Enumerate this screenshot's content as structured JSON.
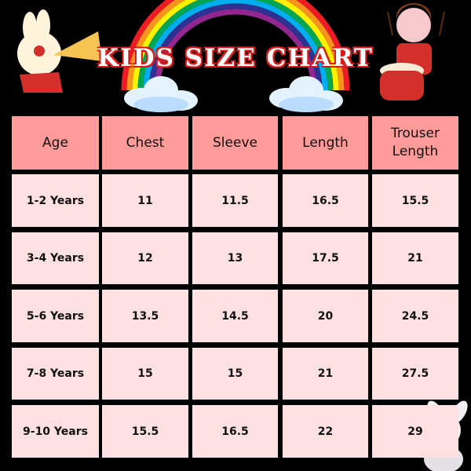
{
  "title": "KIDS SIZE CHART",
  "colors": {
    "header_cell": "#ff9b98",
    "data_cell": "#ffe1e1",
    "background": "#000000",
    "title_outline": "#d81b1b"
  },
  "table": {
    "headers": [
      "Age",
      "Chest",
      "Sleeve",
      "Length",
      "Trouser Length"
    ],
    "rows": [
      [
        "1-2 Years",
        "11",
        "11.5",
        "16.5",
        "15.5"
      ],
      [
        "3-4 Years",
        "12",
        "13",
        "17.5",
        "21"
      ],
      [
        "5-6 Years",
        "13.5",
        "14.5",
        "20",
        "24.5"
      ],
      [
        "7-8 Years",
        "15",
        "15",
        "21",
        "27.5"
      ],
      [
        "9-10 Years",
        "15.5",
        "16.5",
        "22",
        "29"
      ]
    ]
  },
  "icons": [
    "rabbit-trumpet-illustration",
    "rainbow-illustration",
    "cloud-icon",
    "drummer-boy-illustration",
    "bunny-illustration"
  ]
}
